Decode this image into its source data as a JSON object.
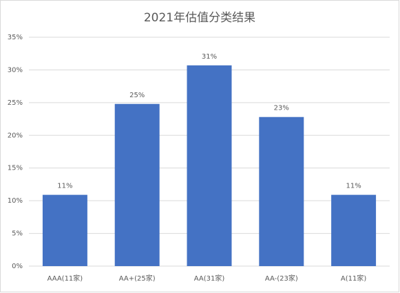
{
  "chart_data": {
    "type": "bar",
    "title": "2021年估值分类结果",
    "categories": [
      "AAA(11家)",
      "AA+(25家)",
      "AA(31家)",
      "AA-(23家)",
      "A(11家)"
    ],
    "values": [
      10.9,
      24.8,
      30.7,
      22.8,
      10.9
    ],
    "value_labels": [
      "11%",
      "25%",
      "31%",
      "23%",
      "11%"
    ],
    "color": "#4472c4",
    "ylim": [
      0,
      35
    ],
    "yticks": [
      {
        "value": 0,
        "label": "0%"
      },
      {
        "value": 5,
        "label": "5%"
      },
      {
        "value": 10,
        "label": "10%"
      },
      {
        "value": 15,
        "label": "15%"
      },
      {
        "value": 20,
        "label": "20%"
      },
      {
        "value": 25,
        "label": "25%"
      },
      {
        "value": 30,
        "label": "30%"
      },
      {
        "value": 35,
        "label": "35%"
      }
    ],
    "grid": true
  }
}
